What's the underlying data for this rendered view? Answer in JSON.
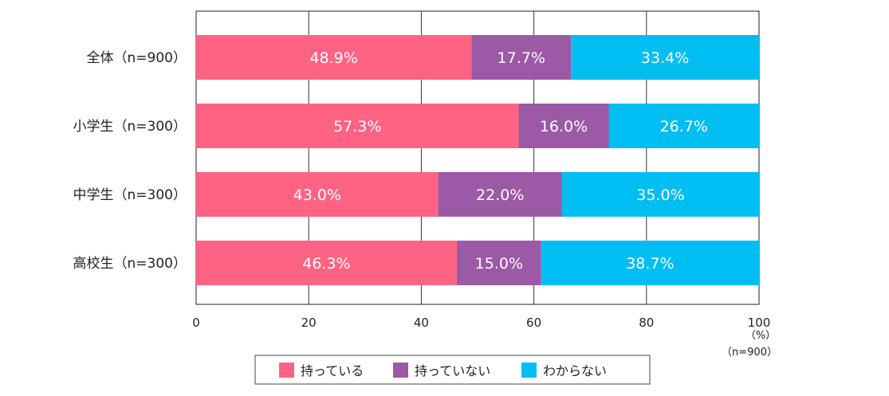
{
  "chart_data": {
    "type": "bar",
    "orientation": "horizontal",
    "stacked": true,
    "categories": [
      "全体（n=900）",
      "小学生（n=300）",
      "中学生（n=300）",
      "高校生（n=300）"
    ],
    "series": [
      {
        "name": "持っている",
        "color": "#ff6384",
        "values": [
          48.9,
          57.3,
          43.0,
          46.3
        ]
      },
      {
        "name": "持っていない",
        "color": "#9b59a6",
        "values": [
          17.7,
          16.0,
          22.0,
          15.0
        ]
      },
      {
        "name": "わからない",
        "color": "#00bdf2",
        "values": [
          33.4,
          26.7,
          35.0,
          38.7
        ]
      }
    ],
    "xlim": [
      0,
      100
    ],
    "xticks": [
      0,
      20,
      40,
      60,
      80,
      100
    ],
    "xunit": "（%）",
    "sample_note": "（n=900）",
    "grid": true,
    "legend_position": "bottom"
  }
}
